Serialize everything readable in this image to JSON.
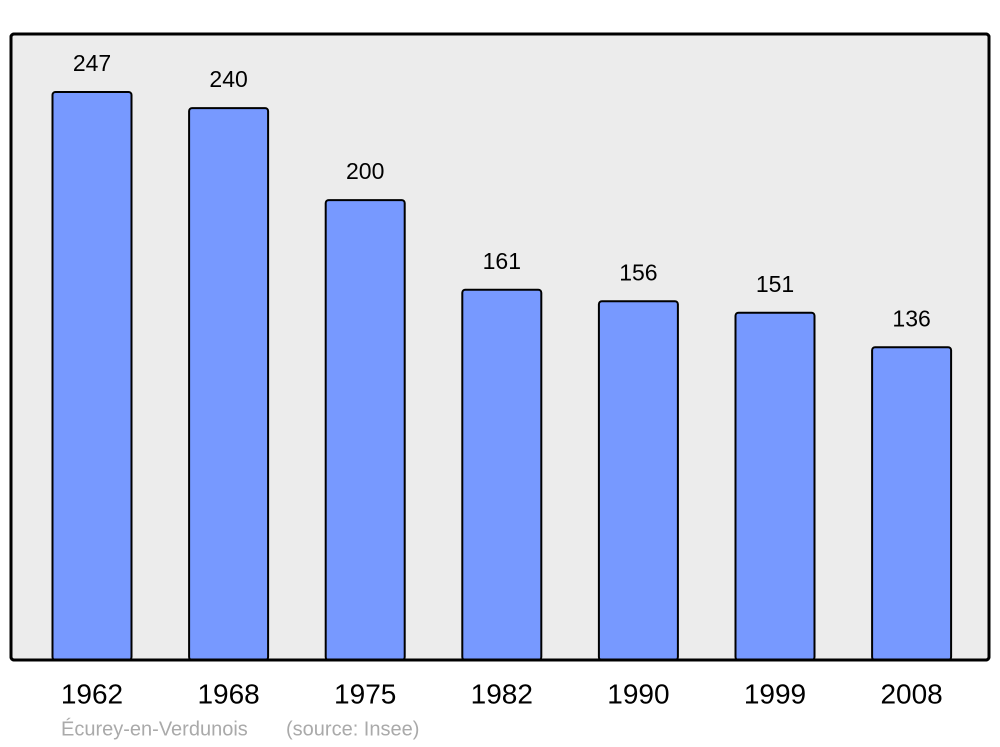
{
  "chart_data": {
    "type": "bar",
    "categories": [
      "1962",
      "1968",
      "1975",
      "1982",
      "1990",
      "1999",
      "2008"
    ],
    "values": [
      247,
      240,
      200,
      161,
      156,
      151,
      136
    ],
    "color": "#7799ff",
    "caption": "Écurey-en-Verdunois",
    "source": "(source: Insee)"
  }
}
